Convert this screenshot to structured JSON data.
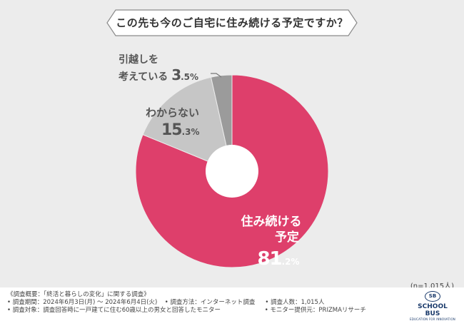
{
  "header": {
    "title": "この先も今のご自宅に住み続ける予定ですか？"
  },
  "chart_data": {
    "type": "pie",
    "title": "この先も今のご自宅に住み続ける予定ですか？",
    "slices": [
      {
        "label_line1": "住み続ける",
        "label_line2": "予定",
        "value": 81.2,
        "value_int": "81",
        "value_dec": ".2%",
        "color": "#de3f6b"
      },
      {
        "label_line1": "わからない",
        "label_line2": "",
        "value": 15.3,
        "value_int": "15",
        "value_dec": ".3%",
        "color": "#c6c6c6"
      },
      {
        "label_line1": "引越しを",
        "label_line2": "考えている",
        "value": 3.5,
        "value_int": "3",
        "value_dec": ".5%",
        "color": "#9b9b9b"
      }
    ],
    "n": "(n=1,015人)"
  },
  "footer": {
    "rows": [
      [
        "《調査概要：「終活と暮らしの変化」に関する調査》"
      ],
      [
        "• 調査期間：2024年6月3日(月) ～ 2024年6月4日(火)",
        "• 調査方法：インターネット調査",
        "• 調査人数：1,015人"
      ],
      [
        "• 調査対象：調査回答時に一戸建てに住む60歳以上の男女と回答したモニター",
        "• モニター提供元：PRIZMAリサーチ"
      ]
    ],
    "logo_mark": "SB",
    "logo_name": "SCHOOL BUS",
    "logo_sub": "EDUCATION FOR INNOVATION"
  },
  "colors": {
    "background": "#ececec",
    "accent": "#de3f6b",
    "header_border": "#888888"
  }
}
